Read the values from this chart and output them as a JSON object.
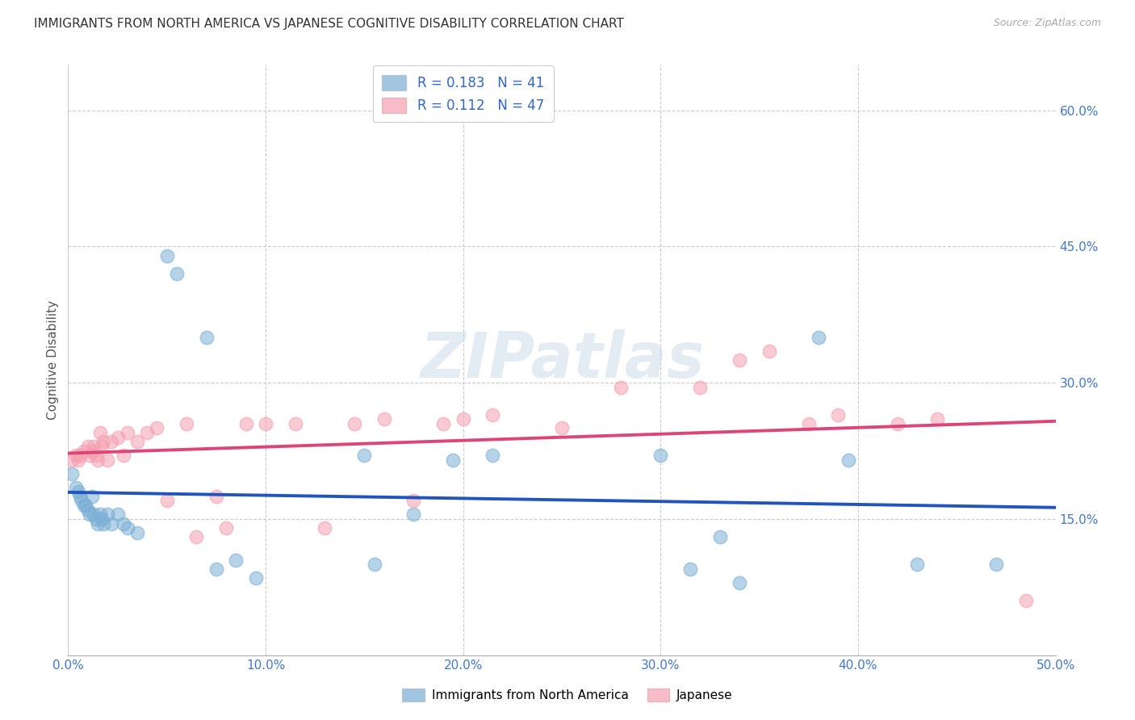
{
  "title": "IMMIGRANTS FROM NORTH AMERICA VS JAPANESE COGNITIVE DISABILITY CORRELATION CHART",
  "source": "Source: ZipAtlas.com",
  "ylabel": "Cognitive Disability",
  "xlim": [
    0.0,
    0.5
  ],
  "ylim": [
    0.0,
    0.65
  ],
  "xticks": [
    0.0,
    0.1,
    0.2,
    0.3,
    0.4,
    0.5
  ],
  "xticklabels": [
    "0.0%",
    "10.0%",
    "20.0%",
    "30.0%",
    "40.0%",
    "50.0%"
  ],
  "yticks_right": [
    0.0,
    0.15,
    0.3,
    0.45,
    0.6
  ],
  "yticklabels_right": [
    "",
    "15.0%",
    "30.0%",
    "45.0%",
    "60.0%"
  ],
  "grid_color": "#cccccc",
  "background_color": "#ffffff",
  "blue_color": "#7bafd4",
  "pink_color": "#f4a0b0",
  "blue_line_color": "#2255bb",
  "pink_line_color": "#dd4477",
  "legend_R_blue": "0.183",
  "legend_N_blue": "41",
  "legend_R_pink": "0.112",
  "legend_N_pink": "47",
  "legend_label_blue": "Immigrants from North America",
  "legend_label_pink": "Japanese",
  "watermark": "ZIPatlas",
  "blue_x": [
    0.002,
    0.004,
    0.005,
    0.006,
    0.007,
    0.008,
    0.009,
    0.01,
    0.011,
    0.012,
    0.013,
    0.014,
    0.015,
    0.016,
    0.017,
    0.018,
    0.02,
    0.022,
    0.025,
    0.028,
    0.03,
    0.035,
    0.05,
    0.055,
    0.07,
    0.075,
    0.085,
    0.095,
    0.15,
    0.155,
    0.175,
    0.195,
    0.215,
    0.3,
    0.315,
    0.33,
    0.34,
    0.38,
    0.395,
    0.43,
    0.47
  ],
  "blue_y": [
    0.2,
    0.185,
    0.18,
    0.175,
    0.17,
    0.165,
    0.165,
    0.16,
    0.155,
    0.175,
    0.155,
    0.15,
    0.145,
    0.155,
    0.15,
    0.145,
    0.155,
    0.145,
    0.155,
    0.145,
    0.14,
    0.135,
    0.44,
    0.42,
    0.35,
    0.095,
    0.105,
    0.085,
    0.22,
    0.1,
    0.155,
    0.215,
    0.22,
    0.22,
    0.095,
    0.13,
    0.08,
    0.35,
    0.215,
    0.1,
    0.1
  ],
  "pink_x": [
    0.002,
    0.004,
    0.005,
    0.006,
    0.008,
    0.01,
    0.011,
    0.012,
    0.013,
    0.014,
    0.015,
    0.016,
    0.017,
    0.018,
    0.02,
    0.022,
    0.025,
    0.028,
    0.03,
    0.035,
    0.04,
    0.045,
    0.05,
    0.06,
    0.065,
    0.075,
    0.08,
    0.09,
    0.1,
    0.115,
    0.13,
    0.145,
    0.16,
    0.175,
    0.19,
    0.2,
    0.215,
    0.25,
    0.28,
    0.32,
    0.34,
    0.355,
    0.375,
    0.39,
    0.42,
    0.44,
    0.485
  ],
  "pink_y": [
    0.215,
    0.22,
    0.215,
    0.22,
    0.225,
    0.23,
    0.22,
    0.225,
    0.23,
    0.22,
    0.215,
    0.245,
    0.23,
    0.235,
    0.215,
    0.235,
    0.24,
    0.22,
    0.245,
    0.235,
    0.245,
    0.25,
    0.17,
    0.255,
    0.13,
    0.175,
    0.14,
    0.255,
    0.255,
    0.255,
    0.14,
    0.255,
    0.26,
    0.17,
    0.255,
    0.26,
    0.265,
    0.25,
    0.295,
    0.295,
    0.325,
    0.335,
    0.255,
    0.265,
    0.255,
    0.26,
    0.06
  ]
}
